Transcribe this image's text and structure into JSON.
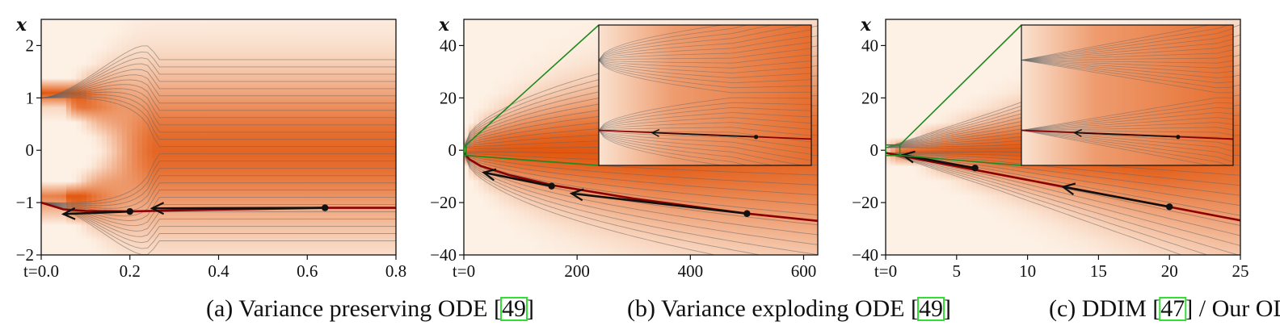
{
  "figure": {
    "panels": [
      {
        "id": "a",
        "caption_before": "(a) Variance preserving ODE [",
        "citation": "49",
        "caption_after": "]"
      },
      {
        "id": "b",
        "caption_before": "(b) Variance exploding ODE [",
        "citation": "49",
        "caption_after": "]"
      },
      {
        "id": "c",
        "caption_before": "(c) DDIM [",
        "citation": "47",
        "caption_after": "] / Our ODE"
      }
    ]
  },
  "colors": {
    "density_low": "#fdf1e5",
    "density_high": "#e2570f",
    "flow_line": "#666666",
    "trajectory": "#8b0000",
    "steps": "#111111",
    "zoom_frame": "#1e8a1e",
    "citation_box": "#33dd33"
  },
  "chart_data": [
    {
      "type": "line",
      "title": "",
      "xlabel": "t",
      "ylabel": "x",
      "xlim": [
        0,
        0.8
      ],
      "ylim": [
        -2,
        2.5
      ],
      "x_ticks": [
        0,
        0.2,
        0.4,
        0.6,
        0.8
      ],
      "x_tick_labels": [
        "t=0.0",
        "0.2",
        "0.4",
        "0.6",
        "0.8"
      ],
      "y_ticks": [
        -2,
        -1,
        0,
        1,
        2
      ],
      "y_tick_labels": [
        "−2",
        "−1",
        "0",
        "1",
        "2"
      ],
      "data_modes": [
        -1,
        1
      ],
      "trajectory": {
        "x": [
          0,
          0.05,
          0.1,
          0.2,
          0.3,
          0.5,
          0.64,
          0.8
        ],
        "y": [
          -1,
          -1.13,
          -1.16,
          -1.17,
          -1.15,
          -1.12,
          -1.1,
          -1.1
        ]
      },
      "step_points": {
        "x": [
          0.64,
          0.2
        ],
        "y": [
          -1.1,
          -1.17
        ]
      },
      "step_arrow_tips": {
        "x": [
          0.25,
          0.05
        ],
        "y": [
          -1.11,
          -1.22
        ]
      }
    },
    {
      "type": "line",
      "title": "",
      "xlabel": "t",
      "ylabel": "x",
      "xlim": [
        0,
        625
      ],
      "ylim": [
        -40,
        50
      ],
      "x_ticks": [
        0,
        200,
        400,
        600
      ],
      "x_tick_labels": [
        "t=0",
        "200",
        "400",
        "600"
      ],
      "y_ticks": [
        -40,
        -20,
        0,
        20,
        40
      ],
      "y_tick_labels": [
        "−40",
        "−20",
        "0",
        "20",
        "40"
      ],
      "data_modes": [
        -1,
        1
      ],
      "trajectory": {
        "x": [
          0,
          10,
          30,
          80,
          160,
          300,
          500,
          625
        ],
        "y": [
          -1,
          -3.5,
          -6,
          -9.5,
          -13.5,
          -18.5,
          -24.2,
          -27
        ]
      },
      "step_points": {
        "x": [
          500,
          155
        ],
        "y": [
          -24.2,
          -13.7
        ]
      },
      "step_arrow_tips": {
        "x": [
          190,
          35
        ],
        "y": [
          -16.5,
          -8.5
        ]
      },
      "zoom_source": {
        "x": [
          0,
          4
        ],
        "y": [
          -2,
          2
        ]
      }
    },
    {
      "type": "line",
      "title": "",
      "xlabel": "t",
      "ylabel": "x",
      "xlim": [
        0,
        25
      ],
      "ylim": [
        -40,
        50
      ],
      "x_ticks": [
        0,
        5,
        10,
        15,
        20,
        25
      ],
      "x_tick_labels": [
        "t=0",
        "5",
        "10",
        "15",
        "20",
        "25"
      ],
      "y_ticks": [
        -40,
        -20,
        0,
        20,
        40
      ],
      "y_tick_labels": [
        "−40",
        "−20",
        "0",
        "20",
        "40"
      ],
      "data_modes": [
        -1,
        1
      ],
      "trajectory": {
        "x": [
          0,
          25
        ],
        "y": [
          -1,
          -26.8
        ]
      },
      "step_points": {
        "x": [
          20,
          6.3
        ],
        "y": [
          -21.6,
          -6.8
        ]
      },
      "step_arrow_tips": {
        "x": [
          12.5,
          1.2
        ],
        "y": [
          -14,
          -1.8
        ]
      },
      "zoom_source": {
        "x": [
          0,
          1
        ],
        "y": [
          -2,
          2
        ]
      }
    }
  ]
}
